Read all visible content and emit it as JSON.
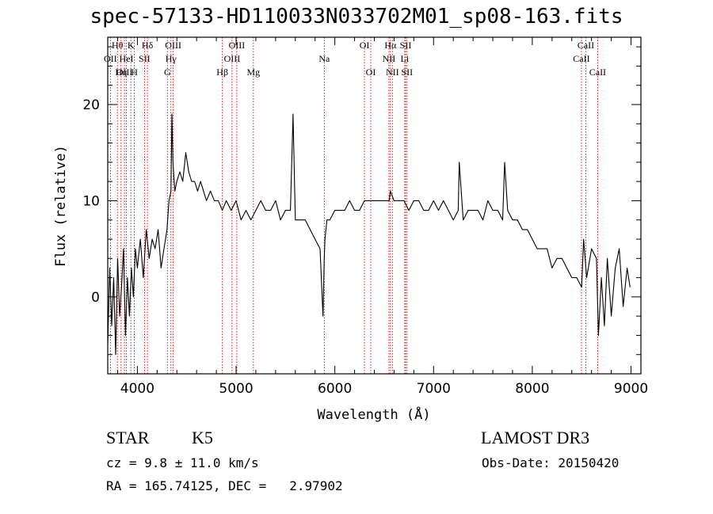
{
  "title": "spec-57133-HD110033N033702M01_sp08-163.fits",
  "chart_data": {
    "type": "line",
    "xlabel": "Wavelength (Å)",
    "ylabel": "Flux (relative)",
    "xlim": [
      3700,
      9100
    ],
    "ylim": [
      -8,
      27
    ],
    "xticks": [
      4000,
      5000,
      6000,
      7000,
      8000,
      9000
    ],
    "yticks": [
      0,
      10,
      20
    ],
    "grid": false,
    "series": [
      {
        "x": [
          3700,
          3720,
          3740,
          3760,
          3780,
          3800,
          3820,
          3840,
          3860,
          3880,
          3900,
          3920,
          3940,
          3960,
          3980,
          4000,
          4030,
          4060,
          4090,
          4120,
          4150,
          4180,
          4210,
          4240,
          4270,
          4300,
          4320,
          4340,
          4350,
          4360,
          4380,
          4400,
          4430,
          4460,
          4490,
          4520,
          4550,
          4580,
          4610,
          4640,
          4670,
          4700,
          4740,
          4780,
          4820,
          4860,
          4900,
          4950,
          5000,
          5050,
          5100,
          5150,
          5200,
          5250,
          5300,
          5350,
          5400,
          5450,
          5500,
          5550,
          5577,
          5600,
          5650,
          5700,
          5750,
          5800,
          5850,
          5880,
          5893,
          5900,
          5920,
          5950,
          6000,
          6050,
          6100,
          6150,
          6200,
          6250,
          6300,
          6350,
          6400,
          6450,
          6500,
          6550,
          6563,
          6600,
          6650,
          6700,
          6750,
          6800,
          6850,
          6900,
          6950,
          7000,
          7050,
          7100,
          7150,
          7200,
          7250,
          7260,
          7300,
          7350,
          7400,
          7450,
          7500,
          7550,
          7600,
          7650,
          7700,
          7720,
          7750,
          7800,
          7850,
          7900,
          7950,
          8000,
          8050,
          8100,
          8150,
          8200,
          8250,
          8300,
          8350,
          8400,
          8450,
          8500,
          8520,
          8550,
          8600,
          8650,
          8670,
          8700,
          8730,
          8760,
          8800,
          8840,
          8880,
          8920,
          8960,
          8990
        ],
        "y": [
          -5,
          3,
          -3,
          2,
          -6,
          4,
          -2,
          1,
          5,
          -4,
          2,
          -2,
          3,
          0,
          5,
          3,
          6,
          2,
          7,
          4,
          6,
          5,
          7,
          3,
          5,
          7,
          10,
          11,
          19,
          14,
          11,
          12,
          13,
          12,
          15,
          13,
          12,
          12,
          11,
          12,
          11,
          10,
          11,
          10,
          10,
          9,
          10,
          9,
          10,
          8,
          9,
          8,
          9,
          10,
          9,
          9,
          10,
          8,
          9,
          9,
          19,
          8,
          8,
          8,
          7,
          6,
          5,
          -2,
          4,
          6,
          8,
          8,
          9,
          9,
          9,
          10,
          9,
          9,
          10,
          10,
          10,
          10,
          10,
          10,
          11,
          10,
          10,
          10,
          9,
          10,
          10,
          9,
          9,
          10,
          9,
          10,
          9,
          8,
          9,
          14,
          8,
          9,
          9,
          9,
          8,
          10,
          9,
          9,
          8,
          14,
          9,
          8,
          8,
          7,
          7,
          6,
          5,
          5,
          5,
          3,
          4,
          4,
          3,
          2,
          2,
          1,
          6,
          2,
          5,
          4,
          -4,
          2,
          -3,
          4,
          -2,
          3,
          5,
          -1,
          3,
          1
        ]
      }
    ],
    "line_markers": [
      {
        "label": "Hθ",
        "x": 3798,
        "row": 1
      },
      {
        "label": "OII",
        "x": 3727,
        "row": 2
      },
      {
        "label": "OIII",
        "x": 3869,
        "row": 3
      },
      {
        "label": "Hη",
        "x": 3835,
        "row": 3
      },
      {
        "label": "K",
        "x": 3934,
        "row": 1
      },
      {
        "label": "HeI",
        "x": 3889,
        "row": 2
      },
      {
        "label": "H",
        "x": 3969,
        "row": 3
      },
      {
        "label": "SII",
        "x": 4072,
        "row": 2
      },
      {
        "label": "Hδ",
        "x": 4102,
        "row": 1
      },
      {
        "label": "OIII",
        "x": 4363,
        "row": 1
      },
      {
        "label": "Hγ",
        "x": 4340,
        "row": 2
      },
      {
        "label": "G",
        "x": 4304,
        "row": 3
      },
      {
        "label": "OIII",
        "x": 5007,
        "row": 1
      },
      {
        "label": "OIII",
        "x": 4959,
        "row": 2
      },
      {
        "label": "Hβ",
        "x": 4861,
        "row": 3
      },
      {
        "label": "Mg",
        "x": 5175,
        "row": 3
      },
      {
        "label": "Na",
        "x": 5893,
        "row": 2
      },
      {
        "label": "OI",
        "x": 6300,
        "row": 1
      },
      {
        "label": "OI",
        "x": 6364,
        "row": 3
      },
      {
        "label": "Hα",
        "x": 6563,
        "row": 1
      },
      {
        "label": "NII",
        "x": 6548,
        "row": 2
      },
      {
        "label": "NII",
        "x": 6583,
        "row": 3
      },
      {
        "label": "SII",
        "x": 6717,
        "row": 1
      },
      {
        "label": "Li",
        "x": 6708,
        "row": 2
      },
      {
        "label": "SII",
        "x": 6731,
        "row": 3
      },
      {
        "label": "CaII",
        "x": 8542,
        "row": 1
      },
      {
        "label": "CaII",
        "x": 8498,
        "row": 2
      },
      {
        "label": "CaII",
        "x": 8662,
        "row": 3
      }
    ]
  },
  "info": {
    "object_class": "STAR",
    "subclass": "K5",
    "survey": "LAMOST DR3",
    "redshift_line": "cz = 9.8 ± 11.0 km/s",
    "obs_date_line": "Obs-Date: 20150420",
    "coords_line": "RA = 165.74125, DEC =   2.97902"
  },
  "colors": {
    "spectrum": "#000000",
    "marker_line": "#cc0000",
    "axes": "#000000"
  }
}
